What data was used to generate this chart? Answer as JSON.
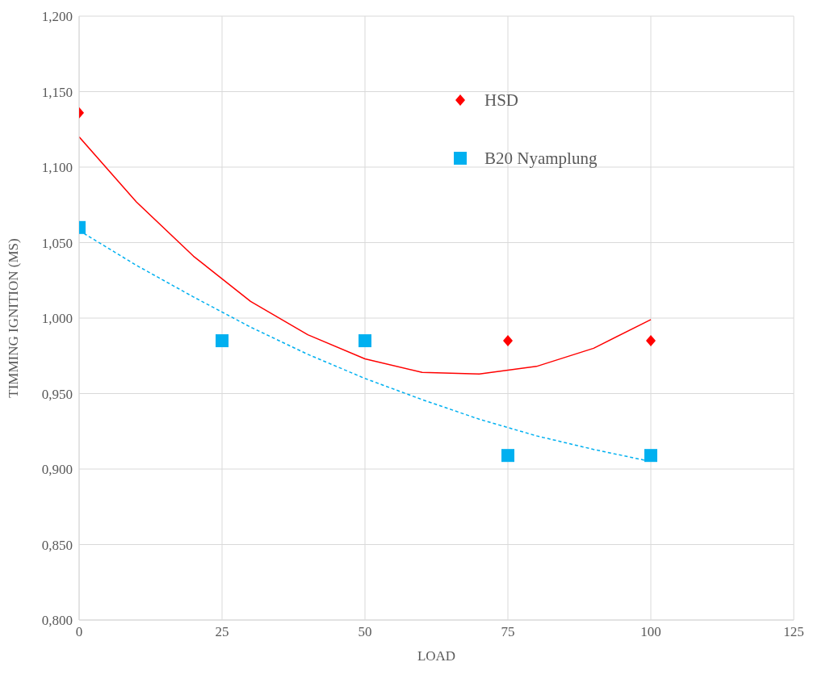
{
  "chart_data": {
    "type": "scatter",
    "xlabel": "LOAD",
    "ylabel": "TIMMING IGNITION (MS)",
    "xlim": [
      0,
      125
    ],
    "xticks": [
      0,
      25,
      50,
      75,
      100,
      125
    ],
    "ylim": [
      0.8,
      1.2
    ],
    "yticks": [
      {
        "value": 0.8,
        "label": "0,800"
      },
      {
        "value": 0.85,
        "label": "0,850"
      },
      {
        "value": 0.9,
        "label": "0,900"
      },
      {
        "value": 0.95,
        "label": "0,950"
      },
      {
        "value": 1.0,
        "label": "1,000"
      },
      {
        "value": 1.05,
        "label": "1,050"
      },
      {
        "value": 1.1,
        "label": "1,100"
      },
      {
        "value": 1.15,
        "label": "1,150"
      },
      {
        "value": 1.2,
        "label": "1,200"
      }
    ],
    "grid": true,
    "legend": "top right",
    "series": [
      {
        "name": "HSD",
        "marker": "diamond",
        "color": "#ff0000",
        "x": [
          0,
          75,
          100
        ],
        "values": [
          1.136,
          0.985,
          0.985
        ]
      },
      {
        "name": "B20 Nyamplung",
        "marker": "square",
        "color": "#00b0f0",
        "x": [
          0,
          25,
          50,
          75,
          100
        ],
        "values": [
          1.06,
          0.985,
          0.985,
          0.909,
          0.909
        ]
      },
      {
        "type": "line",
        "line_style": "solid",
        "color": "#ff0000",
        "x": [
          0,
          10,
          20,
          30,
          40,
          50,
          60,
          70,
          80,
          90,
          100
        ],
        "values": [
          1.12,
          1.077,
          1.041,
          1.011,
          0.989,
          0.973,
          0.964,
          0.963,
          0.968,
          0.98,
          0.999
        ]
      },
      {
        "type": "line",
        "line_style": "dashed",
        "color": "#00b0f0",
        "x": [
          0,
          10,
          20,
          30,
          40,
          50,
          60,
          70,
          80,
          90,
          100
        ],
        "values": [
          1.058,
          1.035,
          1.014,
          0.994,
          0.976,
          0.96,
          0.946,
          0.933,
          0.922,
          0.913,
          0.905
        ]
      }
    ]
  }
}
